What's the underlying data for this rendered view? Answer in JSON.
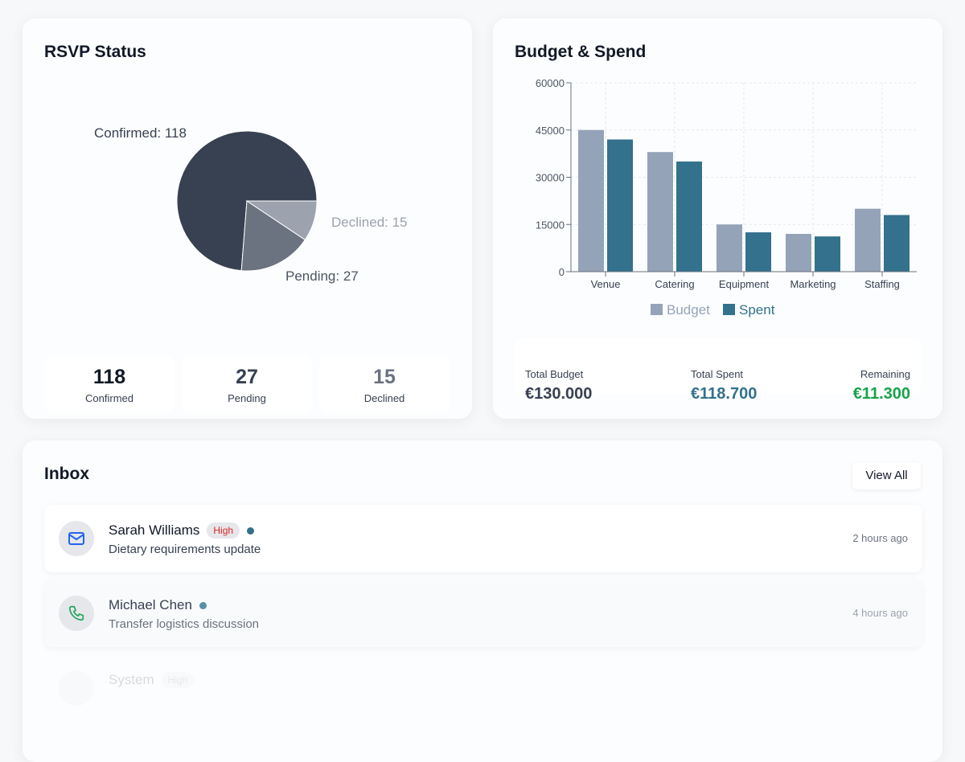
{
  "rsvp": {
    "title": "RSVP Status",
    "stats": [
      {
        "value": "118",
        "label": "Confirmed"
      },
      {
        "value": "27",
        "label": "Pending"
      },
      {
        "value": "15",
        "label": "Declined"
      }
    ]
  },
  "chart_data": [
    {
      "type": "pie",
      "slices": [
        {
          "label": "Confirmed",
          "value": 118,
          "text": "Confirmed: 118",
          "color": "#374151"
        },
        {
          "label": "Pending",
          "value": 27,
          "text": "Pending: 27",
          "color": "#6b7280"
        },
        {
          "label": "Declined",
          "value": 15,
          "text": "Declined: 15",
          "color": "#9ca3af"
        }
      ]
    },
    {
      "type": "bar",
      "title": "Budget & Spend",
      "categories": [
        "Venue",
        "Catering",
        "Equipment",
        "Marketing",
        "Staffing"
      ],
      "series": [
        {
          "name": "Budget",
          "values": [
            45000,
            38000,
            15000,
            12000,
            20000
          ],
          "color": "#94a3b8"
        },
        {
          "name": "Spent",
          "values": [
            42000,
            35000,
            12500,
            11200,
            18000
          ],
          "color": "#33718c"
        }
      ],
      "ylim": [
        0,
        60000
      ],
      "yticks": [
        "0",
        "15000",
        "30000",
        "45000",
        "60000"
      ],
      "grid": true,
      "legend": "bottom"
    }
  ],
  "budget": {
    "title": "Budget & Spend",
    "totals": [
      {
        "label": "Total Budget",
        "value": "€130.000",
        "color": "#111827"
      },
      {
        "label": "Total Spent",
        "value": "€118.700",
        "color": "#33718c"
      },
      {
        "label": "Remaining",
        "value": "€11.300",
        "color": "#16a34a"
      }
    ]
  },
  "inbox": {
    "title": "Inbox",
    "view_all": "View All",
    "messages": [
      {
        "name": "Sarah Williams",
        "badge": "High",
        "subject": "Dietary requirements update",
        "time": "2 hours ago",
        "icon": "mail-icon"
      },
      {
        "name": "Michael Chen",
        "badge": "",
        "subject": "Transfer logistics discussion",
        "time": "4 hours ago",
        "icon": "phone-icon"
      },
      {
        "name": "System",
        "badge": "High",
        "icon": "system-icon"
      }
    ]
  }
}
